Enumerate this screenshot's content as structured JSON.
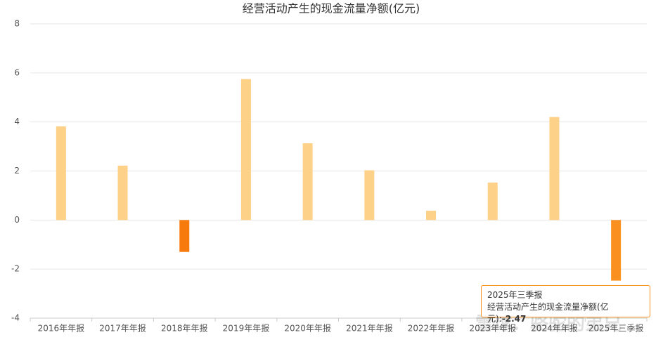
{
  "chart_data": {
    "type": "bar",
    "title": "经营活动产生的现金流量净额(亿元)",
    "categories": [
      "2016年年报",
      "2017年年报",
      "2018年年报",
      "2019年年报",
      "2020年年报",
      "2021年年报",
      "2022年年报",
      "2023年年报",
      "2024年年报",
      "2025年三季报"
    ],
    "values": [
      3.82,
      2.22,
      -1.3,
      5.75,
      3.13,
      2.03,
      0.38,
      1.53,
      4.2,
      -2.47
    ],
    "colors": [
      "#fdd187",
      "#fdd187",
      "#f77a0c",
      "#fdd187",
      "#fdd187",
      "#fdd187",
      "#fdd187",
      "#fdd187",
      "#fdd187",
      "#f9901f"
    ],
    "ylim": [
      -4,
      8
    ],
    "yticks": [
      -4,
      -2,
      0,
      2,
      4,
      6,
      8
    ],
    "grid": true,
    "tooltip": {
      "label": "经营活动产生的现金流量净额(亿元):"
    },
    "watermark": "雪球：骆驼的弟兄"
  }
}
